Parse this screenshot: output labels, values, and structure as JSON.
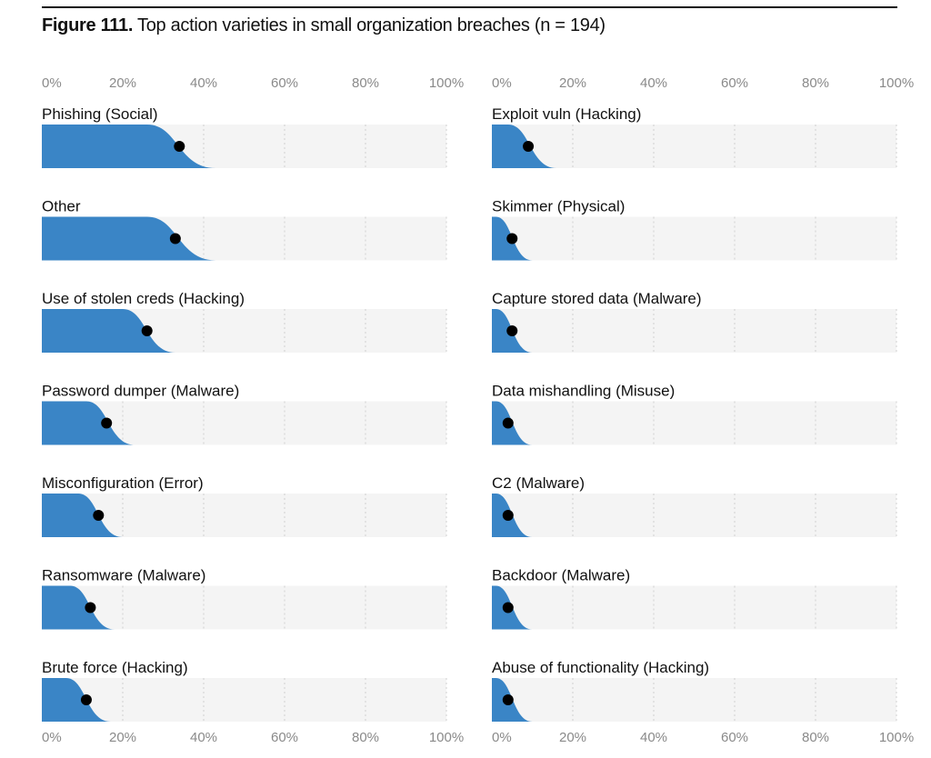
{
  "figure": {
    "label": "Figure 111.",
    "title": "Top action varieties in small organization breaches (n = 194)"
  },
  "colors": {
    "band": "#3a85c6",
    "track": "#f4f4f4",
    "grid": "#d0d0d0",
    "dot": "#000000"
  },
  "chart_data": [
    {
      "type": "bar",
      "subtype": "interval-with-point-estimate",
      "position": "left",
      "xlim": [
        0,
        100
      ],
      "ticks": [
        "0%",
        "20%",
        "40%",
        "60%",
        "80%",
        "100%"
      ],
      "categories": [
        "Phishing (Social)",
        "Other",
        "Use of stolen creds (Hacking)",
        "Password dumper (Malware)",
        "Misconfiguration (Error)",
        "Ransomware (Malware)",
        "Brute force (Hacking)"
      ],
      "values": [
        34,
        33,
        26,
        16,
        14,
        12,
        11
      ],
      "interval_low": [
        26,
        26,
        20,
        11,
        9,
        7,
        6
      ],
      "interval_high": [
        43,
        43,
        33,
        23,
        20,
        18,
        17
      ]
    },
    {
      "type": "bar",
      "subtype": "interval-with-point-estimate",
      "position": "right",
      "xlim": [
        0,
        100
      ],
      "ticks": [
        "0%",
        "20%",
        "40%",
        "60%",
        "80%",
        "100%"
      ],
      "categories": [
        "Exploit vuln (Hacking)",
        "Skimmer (Physical)",
        "Capture stored data (Malware)",
        "Data mishandling (Misuse)",
        "C2 (Malware)",
        "Backdoor (Malware)",
        "Abuse of functionality (Hacking)"
      ],
      "values": [
        9,
        5,
        5,
        4,
        4,
        4,
        4
      ],
      "interval_low": [
        4,
        1,
        1,
        1,
        1,
        1,
        1
      ],
      "interval_high": [
        16,
        10,
        10,
        10,
        10,
        10,
        10
      ]
    }
  ]
}
